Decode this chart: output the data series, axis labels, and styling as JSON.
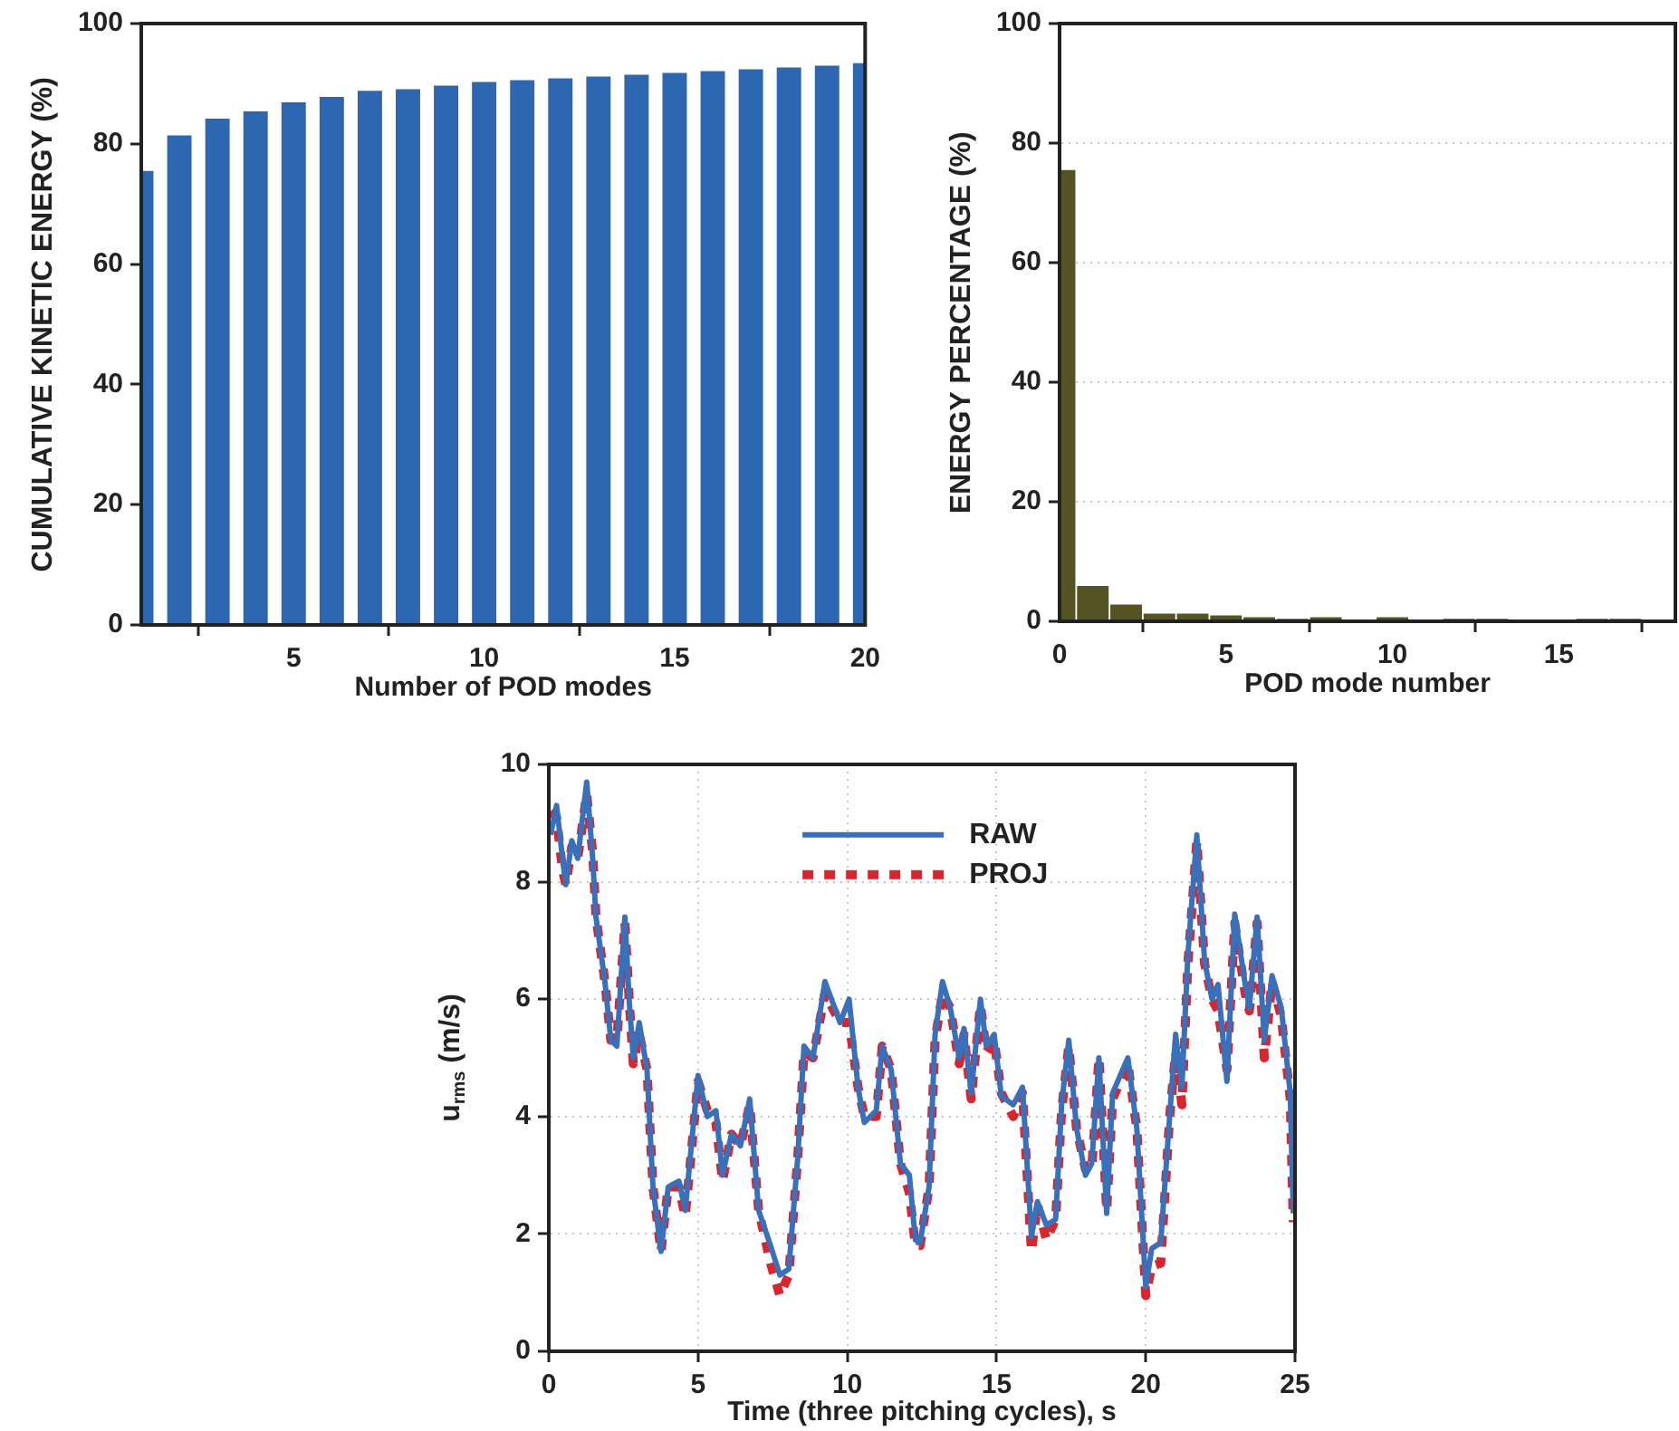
{
  "chart_data": [
    {
      "type": "bar",
      "xlabel": "Number of POD modes",
      "ylabel": "CUMULATIVE KINETIC ENERGY (%)",
      "x": [
        1,
        2,
        3,
        4,
        5,
        6,
        7,
        8,
        9,
        10,
        11,
        12,
        13,
        14,
        15,
        16,
        17,
        18,
        19,
        20
      ],
      "values": [
        75.5,
        81.4,
        84.2,
        85.4,
        86.9,
        87.8,
        88.8,
        89.1,
        89.7,
        90.3,
        90.6,
        90.9,
        91.2,
        91.5,
        91.8,
        92.1,
        92.4,
        92.7,
        93.0,
        93.4
      ],
      "color": "#2e67b1",
      "xlim": [
        1,
        20
      ],
      "xticks": [
        5,
        10,
        15,
        20
      ],
      "ylim": [
        0,
        100
      ],
      "yticks": [
        0,
        20,
        40,
        60,
        80,
        100
      ],
      "grid": false
    },
    {
      "type": "bar",
      "xlabel": "POD mode number",
      "ylabel": "ENERGY PERCENTAGE (%)",
      "x": [
        0,
        1,
        2,
        3,
        4,
        5,
        6,
        7,
        8,
        10,
        12,
        13,
        16,
        17
      ],
      "values": [
        75.5,
        5.9,
        2.8,
        1.3,
        1.3,
        1.0,
        0.7,
        0.4,
        0.7,
        0.7,
        0.4,
        0.4,
        0.4,
        0.4
      ],
      "color": "#545324",
      "xlim": [
        0,
        18.5
      ],
      "xticks": [
        0,
        5,
        10,
        15
      ],
      "ylim": [
        0,
        100
      ],
      "yticks": [
        0,
        20,
        40,
        60,
        80,
        100
      ],
      "grid": "y"
    },
    {
      "type": "line",
      "xlabel": "Time (three pitching cycles), s",
      "ylabel": "u$_{rms}$ (m/s)",
      "xlim": [
        0,
        25
      ],
      "xticks": [
        0,
        5,
        10,
        15,
        20,
        25
      ],
      "ylim": [
        0,
        10
      ],
      "yticks": [
        0,
        2,
        4,
        6,
        8,
        10
      ],
      "grid": true,
      "legend": "top",
      "marker": "none",
      "x": [
        0.06,
        0.26,
        0.46,
        0.57,
        0.77,
        0.97,
        1.27,
        1.47,
        1.58,
        1.88,
        2.08,
        2.28,
        2.55,
        2.69,
        2.83,
        3.03,
        3.29,
        3.49,
        3.76,
        4.0,
        4.36,
        4.57,
        5.0,
        5.31,
        5.6,
        5.82,
        6.12,
        6.42,
        6.73,
        7.03,
        7.43,
        7.74,
        8.04,
        8.34,
        8.55,
        8.85,
        9.25,
        9.76,
        10.06,
        10.36,
        10.57,
        10.97,
        11.17,
        11.47,
        11.78,
        12.08,
        12.28,
        12.44,
        12.74,
        12.94,
        13.19,
        13.45,
        13.75,
        13.91,
        14.15,
        14.46,
        14.66,
        14.92,
        15.16,
        15.56,
        15.87,
        16.17,
        16.37,
        16.67,
        16.98,
        17.18,
        17.42,
        17.68,
        17.98,
        18.19,
        18.43,
        18.69,
        18.89,
        19.4,
        19.7,
        20.0,
        20.2,
        20.5,
        20.8,
        21.0,
        21.21,
        21.41,
        21.71,
        21.97,
        22.22,
        22.42,
        22.72,
        22.98,
        23.33,
        23.47,
        23.73,
        23.97,
        24.23,
        24.54,
        24.84,
        24.94
      ],
      "series": [
        {
          "name": "RAW",
          "color": "#3a6fba",
          "line_style": "solid",
          "values": [
            8.8,
            9.3,
            8.4,
            7.95,
            8.7,
            8.4,
            9.7,
            8.4,
            7.4,
            6.3,
            5.3,
            5.2,
            7.4,
            6.0,
            5.0,
            5.6,
            4.8,
            2.8,
            1.7,
            2.8,
            2.9,
            2.4,
            4.7,
            4.0,
            4.1,
            3.0,
            3.7,
            3.5,
            4.3,
            2.4,
            1.8,
            1.3,
            1.4,
            3.3,
            5.2,
            5.0,
            6.3,
            5.6,
            6.0,
            4.5,
            3.9,
            4.1,
            5.2,
            4.8,
            3.2,
            3.0,
            1.9,
            1.85,
            2.8,
            5.4,
            6.3,
            5.85,
            5.0,
            5.5,
            4.4,
            6.0,
            5.2,
            5.4,
            4.35,
            4.2,
            4.5,
            1.95,
            2.55,
            2.15,
            2.25,
            4.2,
            5.3,
            3.8,
            3.0,
            3.2,
            5.0,
            2.35,
            4.4,
            5.0,
            3.8,
            1.1,
            1.75,
            1.85,
            4.0,
            5.4,
            4.5,
            6.75,
            8.8,
            6.65,
            6.0,
            6.25,
            4.6,
            7.45,
            6.25,
            5.85,
            7.4,
            5.3,
            6.4,
            5.85,
            4.4,
            2.35
          ]
        },
        {
          "name": "PROJ",
          "color": "#d9262e",
          "line_style": "dashed",
          "values": [
            9.2,
            9.1,
            8.2,
            7.95,
            8.6,
            8.4,
            9.5,
            8.5,
            7.4,
            6.3,
            5.3,
            5.3,
            7.3,
            6.0,
            4.9,
            5.4,
            4.8,
            2.8,
            1.7,
            2.8,
            2.8,
            2.3,
            4.6,
            4.1,
            3.9,
            2.9,
            3.7,
            3.5,
            4.2,
            2.4,
            1.5,
            0.95,
            1.3,
            3.3,
            5.1,
            5.0,
            6.1,
            5.6,
            5.6,
            4.5,
            4.0,
            4.0,
            5.2,
            4.8,
            3.2,
            2.7,
            1.8,
            1.8,
            2.8,
            5.3,
            6.1,
            5.85,
            4.9,
            5.4,
            4.3,
            5.9,
            5.1,
            5.3,
            4.4,
            4.0,
            4.4,
            1.7,
            2.5,
            1.9,
            2.25,
            4.1,
            5.2,
            3.8,
            3.1,
            3.1,
            5.0,
            2.4,
            4.3,
            4.9,
            3.8,
            0.95,
            1.45,
            1.5,
            4.0,
            5.1,
            4.2,
            6.6,
            8.7,
            6.6,
            6.0,
            5.8,
            4.8,
            7.3,
            6.1,
            5.8,
            7.3,
            5.0,
            6.3,
            5.7,
            4.3,
            2.2
          ]
        }
      ]
    }
  ]
}
